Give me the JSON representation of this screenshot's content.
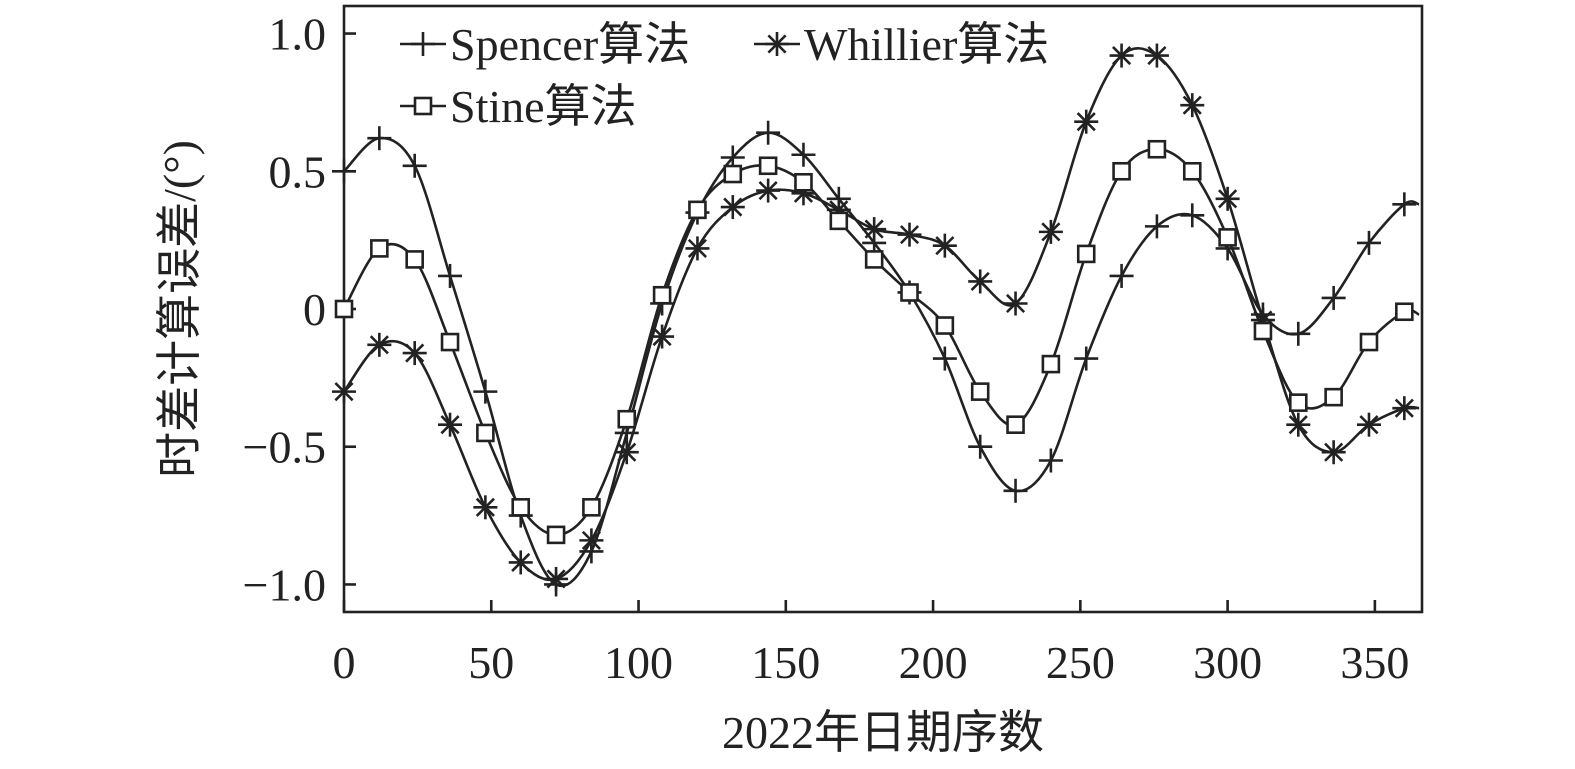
{
  "chart_data": {
    "type": "line",
    "xlabel": "2022年日期序数",
    "ylabel": "时差计算误差/(°)",
    "xlim": [
      0,
      366
    ],
    "ylim": [
      -1.1,
      1.1
    ],
    "x_ticks": [
      0,
      50,
      100,
      150,
      200,
      250,
      300,
      350
    ],
    "x_tick_labels": [
      "0",
      "50",
      "100",
      "150",
      "200",
      "250",
      "300",
      "350"
    ],
    "y_ticks": [
      1.0,
      0.5,
      0,
      -0.5,
      -1.0
    ],
    "y_tick_labels": [
      "1.0",
      "0.5",
      "0",
      "−0.5",
      "−1.0"
    ],
    "grid": false,
    "legend_position": "top-left",
    "series": [
      {
        "name": "Spencer算法",
        "marker": "plus",
        "x": [
          0,
          12,
          24,
          36,
          48,
          60,
          72,
          84,
          96,
          108,
          120,
          132,
          144,
          156,
          168,
          180,
          192,
          204,
          216,
          228,
          240,
          252,
          264,
          276,
          288,
          300,
          312,
          324,
          336,
          348,
          360,
          365
        ],
        "values": [
          0.5,
          0.62,
          0.52,
          0.12,
          -0.3,
          -0.75,
          -1.0,
          -0.88,
          -0.45,
          0.02,
          0.35,
          0.55,
          0.64,
          0.56,
          0.4,
          0.24,
          0.06,
          -0.18,
          -0.5,
          -0.66,
          -0.55,
          -0.18,
          0.12,
          0.3,
          0.34,
          0.22,
          -0.02,
          -0.09,
          0.04,
          0.24,
          0.38,
          0.38
        ]
      },
      {
        "name": "Whillier算法",
        "marker": "asterisk",
        "x": [
          0,
          12,
          24,
          36,
          48,
          60,
          72,
          84,
          96,
          108,
          120,
          132,
          144,
          156,
          168,
          180,
          192,
          204,
          216,
          228,
          240,
          252,
          264,
          276,
          288,
          300,
          312,
          324,
          336,
          348,
          360,
          365
        ],
        "values": [
          -0.3,
          -0.13,
          -0.16,
          -0.42,
          -0.72,
          -0.92,
          -0.98,
          -0.84,
          -0.52,
          -0.1,
          0.22,
          0.37,
          0.43,
          0.42,
          0.36,
          0.29,
          0.27,
          0.23,
          0.1,
          0.02,
          0.28,
          0.68,
          0.92,
          0.92,
          0.74,
          0.4,
          -0.04,
          -0.42,
          -0.52,
          -0.42,
          -0.36,
          -0.36
        ]
      },
      {
        "name": "Stine算法",
        "marker": "square",
        "x": [
          0,
          12,
          24,
          36,
          48,
          60,
          72,
          84,
          96,
          108,
          120,
          132,
          144,
          156,
          168,
          180,
          192,
          204,
          216,
          228,
          240,
          252,
          264,
          276,
          288,
          300,
          312,
          324,
          336,
          348,
          360,
          365
        ],
        "values": [
          0.0,
          0.22,
          0.18,
          -0.12,
          -0.45,
          -0.72,
          -0.82,
          -0.72,
          -0.4,
          0.05,
          0.36,
          0.49,
          0.52,
          0.46,
          0.32,
          0.18,
          0.06,
          -0.06,
          -0.3,
          -0.42,
          -0.2,
          0.2,
          0.5,
          0.58,
          0.5,
          0.26,
          -0.08,
          -0.34,
          -0.32,
          -0.12,
          -0.01,
          -0.02
        ]
      }
    ]
  }
}
